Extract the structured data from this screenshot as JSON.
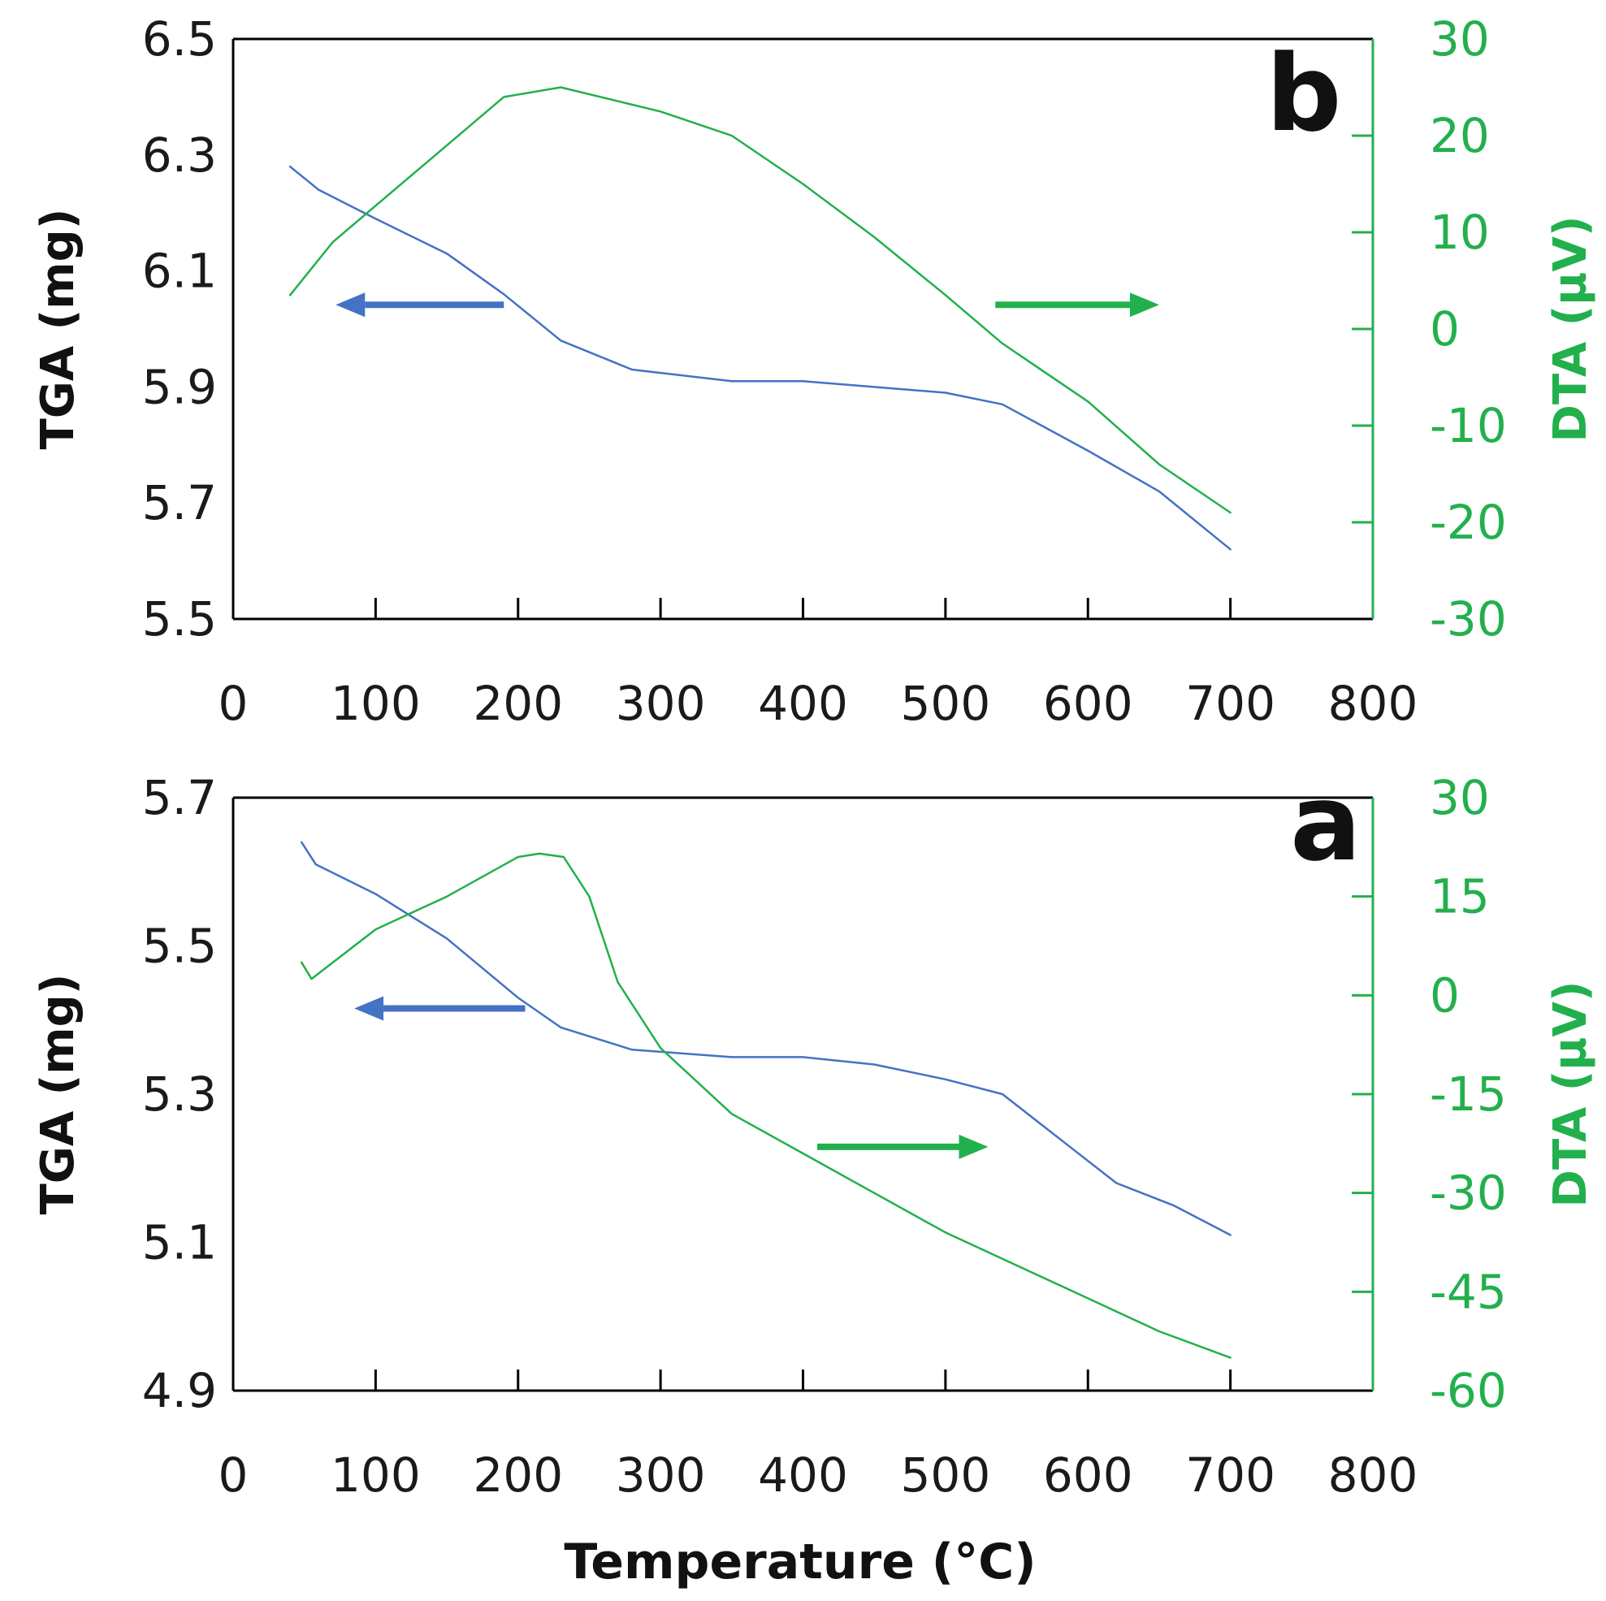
{
  "figure": {
    "xlabel": "Temperature (°C)"
  },
  "chart_data": [
    {
      "type": "line",
      "panel_label": "b",
      "xlim": [
        0,
        800
      ],
      "x_ticks": [
        "0",
        "100",
        "200",
        "300",
        "400",
        "500",
        "600",
        "700",
        "800"
      ],
      "ylabel": "TGA (mg)",
      "ylim": [
        5.5,
        6.5
      ],
      "y_ticks": [
        "6.5",
        "6.3",
        "6.1",
        "5.9",
        "5.7",
        "5.5"
      ],
      "y_ticks_right": [
        "30",
        "20",
        "10",
        "0",
        "-10",
        "-20",
        "-30"
      ],
      "ylabel_right": "DTA (µV)",
      "ylim_right": [
        -30,
        30
      ],
      "grid": false,
      "series": [
        {
          "axis": "left",
          "color": "#4472c4",
          "x": [
            40,
            60,
            100,
            150,
            190,
            230,
            280,
            350,
            400,
            450,
            500,
            540,
            600,
            650,
            700
          ],
          "y": [
            6.28,
            6.24,
            6.19,
            6.13,
            6.06,
            5.98,
            5.93,
            5.91,
            5.91,
            5.9,
            5.89,
            5.87,
            5.79,
            5.72,
            5.62
          ]
        },
        {
          "axis": "right",
          "color": "#22b04c",
          "x": [
            40,
            70,
            110,
            150,
            190,
            230,
            300,
            350,
            400,
            450,
            500,
            540,
            600,
            650,
            700
          ],
          "y": [
            3.5,
            9,
            14,
            19,
            24,
            25,
            22.5,
            20,
            15,
            9.5,
            3.5,
            -1.5,
            -7.5,
            -14,
            -19
          ]
        }
      ],
      "arrows": [
        {
          "direction": "left",
          "color": "#4472c4",
          "x_from": 190,
          "x_to": 72,
          "y_right": 2.5
        },
        {
          "direction": "right",
          "color": "#22b04c",
          "x_from": 535,
          "x_to": 650,
          "y_right": 2.5
        }
      ]
    },
    {
      "type": "line",
      "panel_label": "a",
      "xlim": [
        0,
        800
      ],
      "x_ticks": [
        "0",
        "100",
        "200",
        "300",
        "400",
        "500",
        "600",
        "700",
        "800"
      ],
      "ylabel": "TGA (mg)",
      "ylim": [
        4.9,
        5.7
      ],
      "y_ticks": [
        "5.7",
        "5.5",
        "5.3",
        "5.1",
        "4.9"
      ],
      "y_ticks_right": [
        "30",
        "15",
        "0",
        "-15",
        "-30",
        "-45",
        "-60"
      ],
      "ylabel_right": "DTA (µV)",
      "ylim_right": [
        -60,
        30
      ],
      "grid": false,
      "series": [
        {
          "axis": "left",
          "color": "#4472c4",
          "x": [
            48,
            58,
            100,
            150,
            200,
            230,
            280,
            350,
            400,
            450,
            500,
            540,
            580,
            620,
            660,
            700
          ],
          "y": [
            5.64,
            5.61,
            5.57,
            5.51,
            5.43,
            5.39,
            5.36,
            5.35,
            5.35,
            5.34,
            5.32,
            5.3,
            5.24,
            5.18,
            5.15,
            5.11
          ]
        },
        {
          "axis": "right",
          "color": "#22b04c",
          "x": [
            48,
            55,
            100,
            150,
            200,
            215,
            232,
            250,
            270,
            300,
            350,
            400,
            450,
            500,
            550,
            600,
            650,
            700
          ],
          "y": [
            5,
            2.5,
            10,
            15,
            21,
            21.5,
            21,
            15,
            2,
            -8,
            -18,
            -24,
            -30,
            -36,
            -41,
            -46,
            -51,
            -55
          ]
        }
      ],
      "arrows": [
        {
          "direction": "left",
          "color": "#4472c4",
          "x_from": 205,
          "x_to": 85,
          "y_right": -2
        },
        {
          "direction": "right",
          "color": "#22b04c",
          "x_from": 410,
          "x_to": 530,
          "y_right": -23
        }
      ]
    }
  ]
}
